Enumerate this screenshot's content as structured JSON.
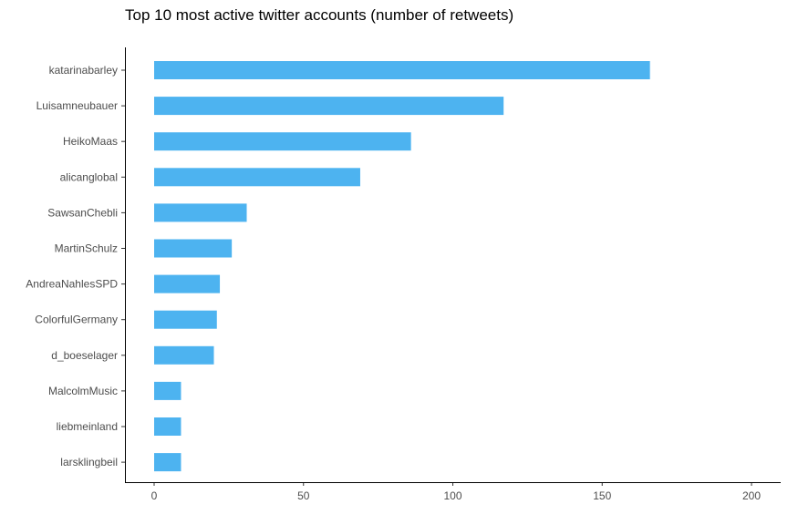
{
  "chart_data": {
    "type": "bar",
    "orientation": "horizontal",
    "title": "Top 10 most active twitter accounts (number of retweets)",
    "xlabel": "",
    "ylabel": "",
    "categories": [
      "katarinabarley",
      "Luisamneubauer",
      "HeikoMaas",
      "alicanglobal",
      "SawsanChebli",
      "MartinSchulz",
      "AndreaNahlesSPD",
      "ColorfulGermany",
      "d_boeselager",
      "MalcolmMusic",
      "liebmeinland",
      "larsklingbeil"
    ],
    "values": [
      166,
      117,
      86,
      69,
      31,
      26,
      22,
      21,
      20,
      9,
      9,
      9
    ],
    "xlim": [
      0,
      200
    ],
    "xticks": [
      0,
      50,
      100,
      150,
      200
    ],
    "xtick_labels": [
      "0",
      "50",
      "100",
      "150",
      "200"
    ],
    "grid": false,
    "legend": "none",
    "bar_color": "#4db3f0"
  }
}
